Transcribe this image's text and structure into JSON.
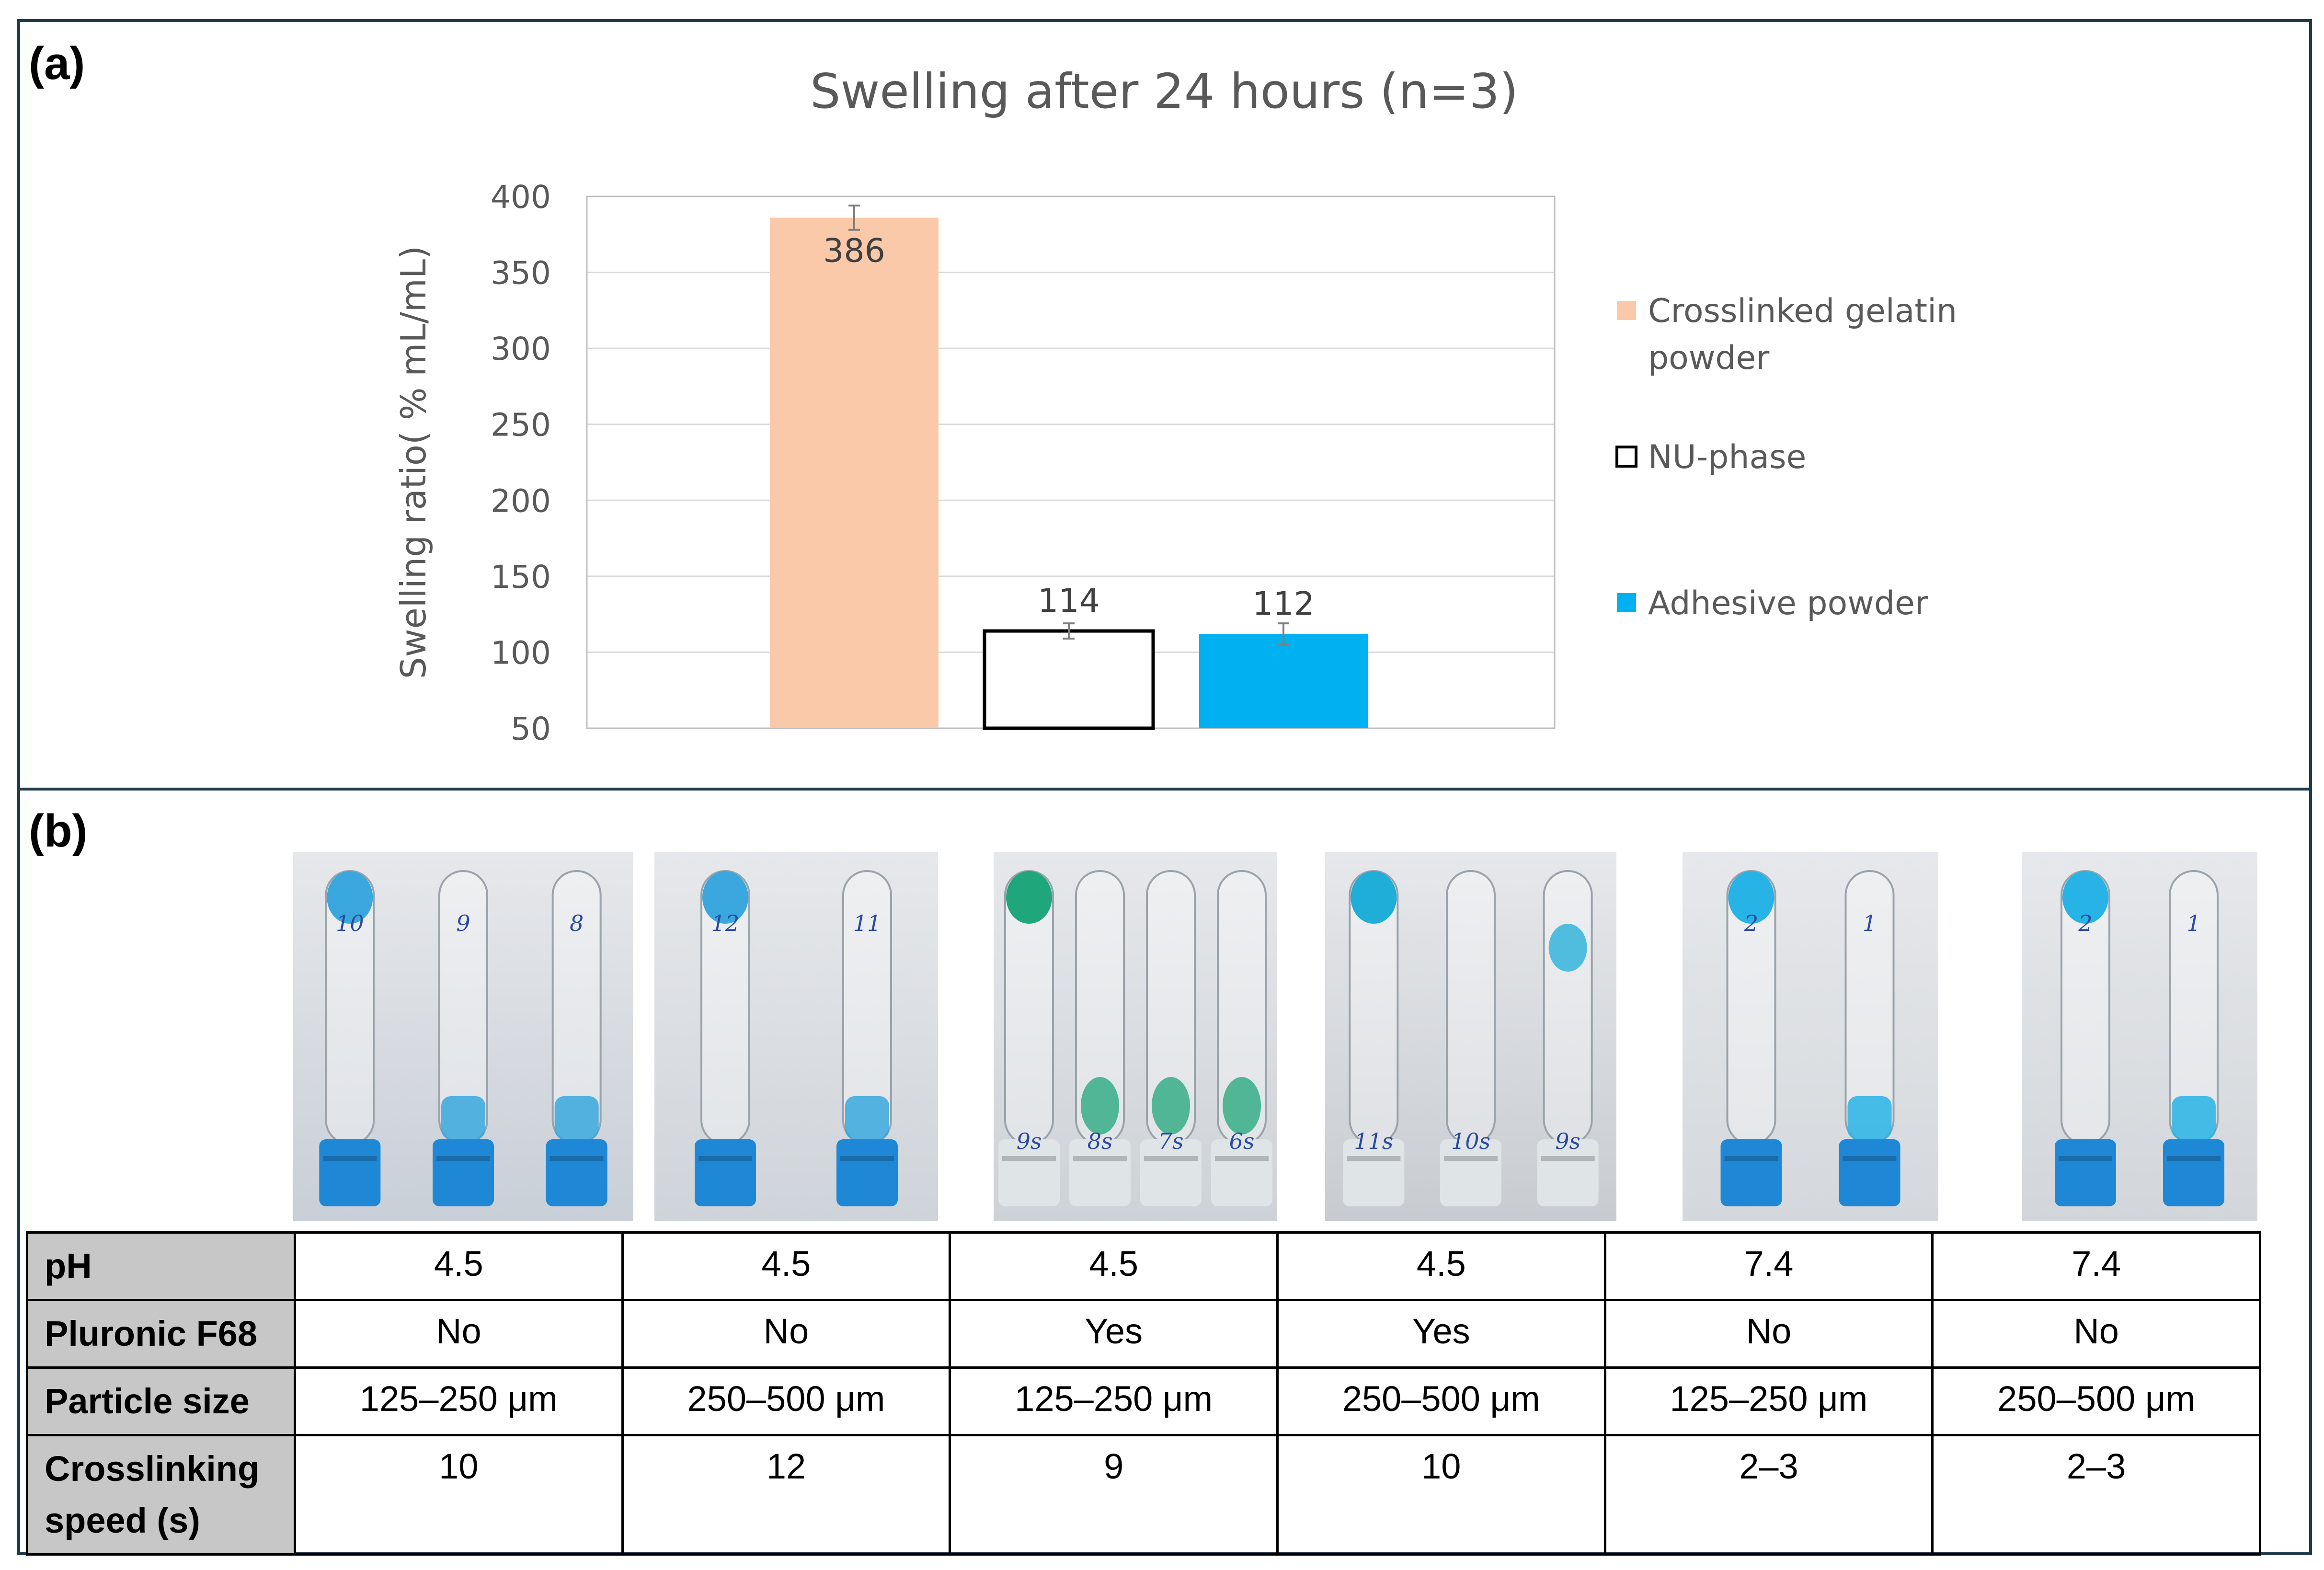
{
  "panel_a_label": "(a)",
  "panel_b_label": "(b)",
  "chart_data": {
    "type": "bar",
    "title": "Swelling after 24 hours (n=3)",
    "xlabel": "",
    "ylabel": "Swelling ratio( % mL/mL)",
    "ylim": [
      50,
      400
    ],
    "yticks": [
      50,
      100,
      150,
      200,
      250,
      300,
      350,
      400
    ],
    "grid": true,
    "legend_position": "right",
    "categories": [
      "Crosslinked gelatin powder",
      "NU-phase",
      "Adhesive powder"
    ],
    "values": [
      386,
      114,
      112
    ],
    "errors": [
      8,
      5,
      7
    ],
    "data_labels": [
      "386",
      "114",
      "112"
    ],
    "series": [
      {
        "name": "Crosslinked gelatin powder",
        "value": 386,
        "fill": "#f9c9a9",
        "stroke": "none"
      },
      {
        "name": "NU-phase",
        "value": 114,
        "fill": "#ffffff",
        "stroke": "#000000"
      },
      {
        "name": "Adhesive powder",
        "value": 112,
        "fill": "#00b0f0",
        "stroke": "none"
      }
    ]
  },
  "photos": [
    {
      "name": "photo-1",
      "tube_labels": [
        "10",
        "9",
        "8"
      ],
      "gel_color": "#3aa8de",
      "background": "#c9cfd7"
    },
    {
      "name": "photo-2",
      "tube_labels": [
        "12",
        "11"
      ],
      "gel_color": "#3aa8de",
      "background": "#cfd4da"
    },
    {
      "name": "photo-3",
      "tube_labels": [
        "9s",
        "8s",
        "7s",
        "6s"
      ],
      "gel_color": "#1fa67a",
      "background": "#cdd2d7"
    },
    {
      "name": "photo-4",
      "tube_labels": [
        "11s",
        "10s",
        "9s"
      ],
      "gel_color": "#1eaed8",
      "background": "#c8ccd1"
    },
    {
      "name": "photo-5",
      "tube_labels": [
        "2",
        "1"
      ],
      "gel_color": "#28b3e6",
      "background": "#d4d8dc"
    },
    {
      "name": "photo-6",
      "tube_labels": [
        "2",
        "1"
      ],
      "gel_color": "#28b3e6",
      "background": "#d2d6da"
    }
  ],
  "table": {
    "rows": [
      {
        "header": "pH",
        "cells": [
          "4.5",
          "4.5",
          "4.5",
          "4.5",
          "7.4",
          "7.4"
        ]
      },
      {
        "header": "Pluronic F68",
        "cells": [
          "No",
          "No",
          "Yes",
          "Yes",
          "No",
          "No"
        ]
      },
      {
        "header": "Particle size",
        "cells": [
          "125–250 μm",
          "250–500 μm",
          "125–250 μm",
          "250–500 μm",
          "125–250 μm",
          "250–500 μm"
        ]
      },
      {
        "header": "Crosslinking speed (s)",
        "cells": [
          "10",
          "12",
          "9",
          "10",
          "2–3",
          "2–3"
        ]
      }
    ]
  },
  "colors": {
    "frame": "#1f3a4a",
    "axis_text": "#595959",
    "grid": "#d9d9d9",
    "table_header_bg": "#c7c7c7"
  }
}
